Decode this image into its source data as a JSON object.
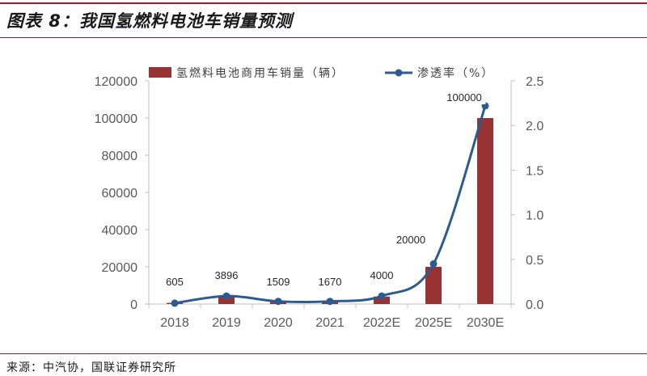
{
  "header": {
    "title": "图表 8：我国氢燃料电池车销量预测"
  },
  "footer": {
    "source": "来源：中汽协，国联证券研究所"
  },
  "colors": {
    "bar": "#993333",
    "line": "#2b5b8f",
    "accent": "#b0132b"
  },
  "chart_data": {
    "type": "bar",
    "categories": [
      "2018",
      "2019",
      "2020",
      "2021",
      "2022E",
      "2025E",
      "2030E"
    ],
    "series": [
      {
        "name": "氢燃料电池商用车销量（辆）",
        "type": "bar",
        "axis": "left",
        "values": [
          605,
          3896,
          1509,
          1670,
          4000,
          20000,
          100000
        ],
        "labels": [
          "605",
          "3896",
          "1509",
          "1670",
          "4000",
          "20000",
          "100000"
        ]
      },
      {
        "name": "渗透率（%）",
        "type": "line",
        "axis": "right",
        "values": [
          0.01,
          0.09,
          0.03,
          0.03,
          0.09,
          0.45,
          2.22
        ]
      }
    ],
    "ylim": [
      0,
      120000
    ],
    "y2lim": [
      0,
      2.5
    ],
    "y_ticks": [
      "0",
      "20000",
      "40000",
      "60000",
      "80000",
      "100000",
      "120000"
    ],
    "y2_ticks": [
      "0.0",
      "0.5",
      "1.0",
      "1.5",
      "2.0",
      "2.5"
    ],
    "legend": "top",
    "grid": false
  }
}
